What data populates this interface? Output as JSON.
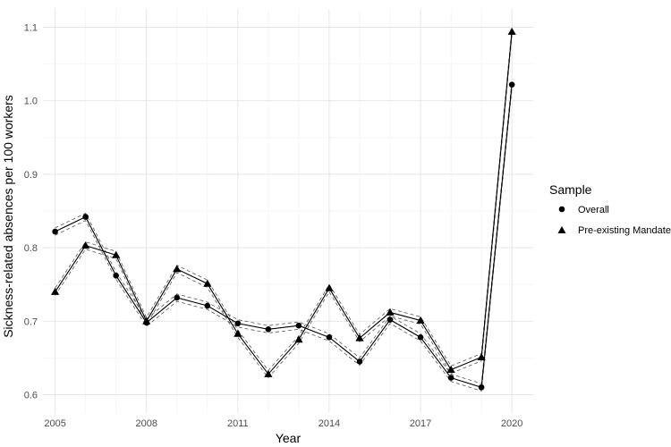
{
  "chart_data": {
    "type": "line",
    "xlabel": "Year",
    "ylabel": "Sickness-related absences per 100 workers",
    "xlim": [
      2004.6,
      2020.7
    ],
    "ylim": [
      0.575,
      1.125
    ],
    "x_ticks": [
      2005,
      2008,
      2011,
      2014,
      2017,
      2020
    ],
    "y_ticks": [
      0.6,
      0.7,
      0.8,
      0.9,
      1.0,
      1.1
    ],
    "x_tick_labels": [
      "2005",
      "2008",
      "2011",
      "2014",
      "2017",
      "2020"
    ],
    "y_tick_labels": [
      "0.6",
      "0.7",
      "0.8",
      "0.9",
      "1.0",
      "1.1"
    ],
    "grid": true,
    "legend": {
      "title": "Sample",
      "position": "right"
    },
    "x": [
      2005,
      2006,
      2007,
      2008,
      2009,
      2010,
      2011,
      2012,
      2013,
      2014,
      2015,
      2016,
      2017,
      2018,
      2019,
      2020
    ],
    "series": [
      {
        "name": "Overall",
        "marker": "circle",
        "values": [
          0.822,
          0.842,
          0.762,
          0.698,
          0.732,
          0.721,
          0.697,
          0.689,
          0.694,
          0.678,
          0.645,
          0.702,
          0.678,
          0.623,
          0.61,
          1.022
        ]
      },
      {
        "name": "Pre-existing Mandate",
        "marker": "triangle",
        "values": [
          0.74,
          0.803,
          0.79,
          0.7,
          0.771,
          0.751,
          0.683,
          0.628,
          0.675,
          0.745,
          0.677,
          0.712,
          0.701,
          0.634,
          0.651,
          1.094
        ]
      }
    ],
    "band_halfwidth": 0.005
  }
}
